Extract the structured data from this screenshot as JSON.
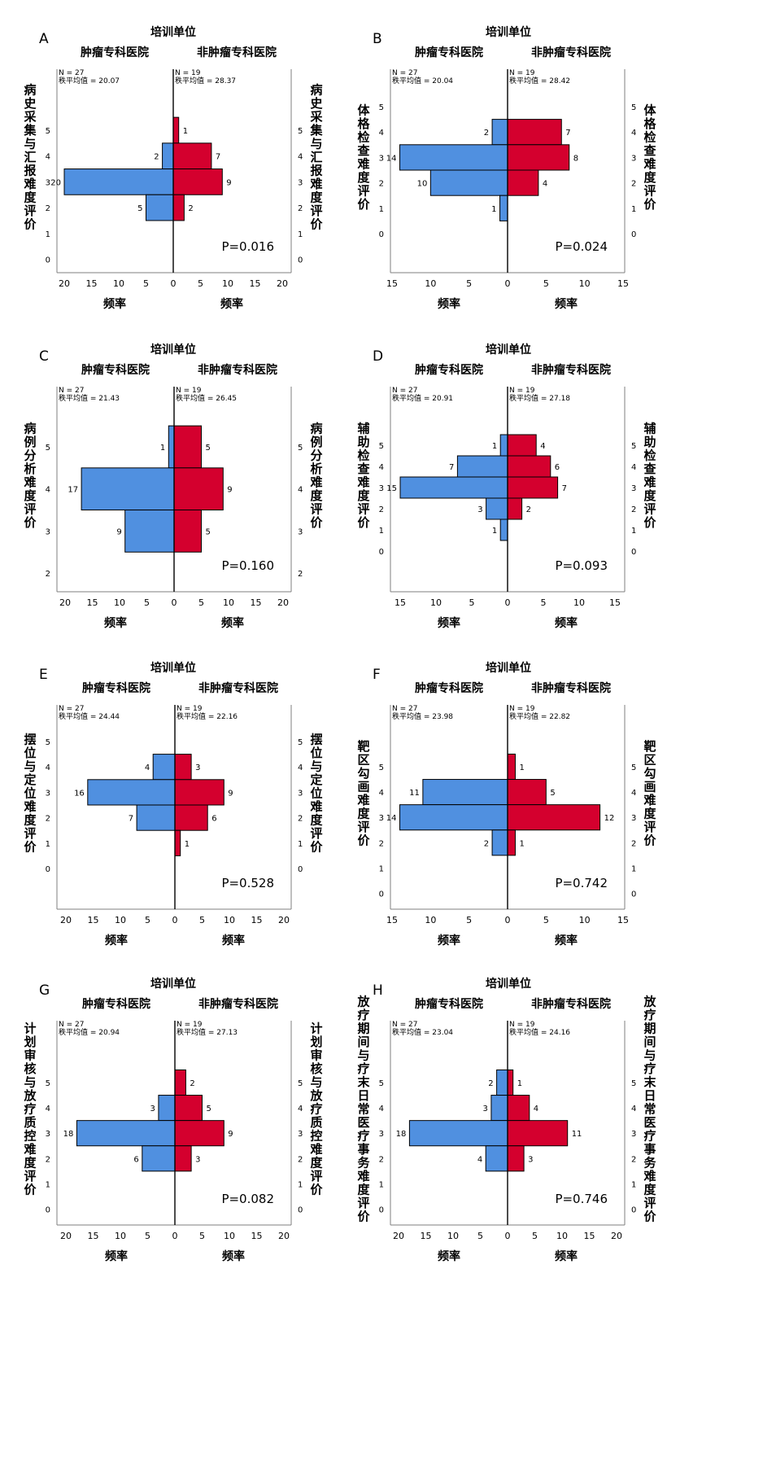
{
  "chart_data": [
    {
      "type": "bar",
      "panel": "A",
      "title": "培训单位",
      "groups": [
        "肿瘤专科医院",
        "非肿瘤专科医院"
      ],
      "ylabel": "病史采集与汇报难度评价",
      "xlabel": "频率",
      "y_ticks": [
        5,
        4,
        3,
        2,
        1,
        0
      ],
      "xlim": [
        0,
        20
      ],
      "x_ticks": [
        20,
        15,
        10,
        5,
        0,
        5,
        10,
        15,
        20
      ],
      "left_stats": [
        "N = 27",
        "秩平均值 = 20.07"
      ],
      "right_stats": [
        "N = 19",
        "秩平均值 = 28.37"
      ],
      "categories": [
        5,
        4,
        3,
        2,
        1,
        0
      ],
      "series": [
        {
          "name": "肿瘤专科医院",
          "values": [
            0,
            2,
            20,
            5,
            0,
            0
          ]
        },
        {
          "name": "非肿瘤专科医院",
          "values": [
            1,
            7,
            9,
            2,
            0,
            0
          ]
        }
      ],
      "p_value": "P=0.016"
    },
    {
      "type": "bar",
      "panel": "B",
      "title": "培训单位",
      "groups": [
        "肿瘤专科医院",
        "非肿瘤专科医院"
      ],
      "ylabel": "体格检查难度评价",
      "xlabel": "频率",
      "y_ticks": [
        5,
        4,
        3,
        2,
        1,
        0
      ],
      "xlim": [
        0,
        15
      ],
      "x_ticks": [
        15,
        10,
        5,
        0,
        5,
        10,
        15
      ],
      "left_stats": [
        "N = 27",
        "秩平均值 = 20.04"
      ],
      "right_stats": [
        "N = 19",
        "秩平均值 = 28.42"
      ],
      "categories": [
        5,
        4,
        3,
        2,
        1,
        0
      ],
      "series": [
        {
          "name": "肿瘤专科医院",
          "values": [
            0,
            2,
            14,
            10,
            1,
            0
          ]
        },
        {
          "name": "非肿瘤专科医院",
          "values": [
            0,
            7,
            8,
            4,
            0,
            0
          ]
        }
      ],
      "p_value": "P=0.024"
    },
    {
      "type": "bar",
      "panel": "C",
      "title": "培训单位",
      "groups": [
        "肿瘤专科医院",
        "非肿瘤专科医院"
      ],
      "ylabel": "病例分析难度评价",
      "xlabel": "频率",
      "y_ticks": [
        5,
        4,
        3,
        2
      ],
      "xlim": [
        0,
        20
      ],
      "x_ticks": [
        20,
        15,
        10,
        5,
        0,
        5,
        10,
        15,
        20
      ],
      "left_stats": [
        "N = 27",
        "秩平均值 = 21.43"
      ],
      "right_stats": [
        "N = 19",
        "秩平均值 = 26.45"
      ],
      "categories": [
        5,
        4,
        3,
        2
      ],
      "series": [
        {
          "name": "肿瘤专科医院",
          "values": [
            1,
            17,
            9,
            0
          ]
        },
        {
          "name": "非肿瘤专科医院",
          "values": [
            5,
            9,
            5,
            0
          ]
        }
      ],
      "p_value": "P=0.160"
    },
    {
      "type": "bar",
      "panel": "D",
      "title": "培训单位",
      "groups": [
        "肿瘤专科医院",
        "非肿瘤专科医院"
      ],
      "ylabel": "辅助检查难度评价",
      "xlabel": "频率",
      "y_ticks": [
        5,
        4,
        3,
        2,
        1,
        0
      ],
      "xlim": [
        0,
        15
      ],
      "x_ticks": [
        15,
        10,
        5,
        0,
        5,
        10,
        15
      ],
      "left_stats": [
        "N = 27",
        "秩平均值 = 20.91"
      ],
      "right_stats": [
        "N = 19",
        "秩平均值 = 27.18"
      ],
      "categories": [
        5,
        4,
        3,
        2,
        1,
        0
      ],
      "series": [
        {
          "name": "肿瘤专科医院",
          "values": [
            1,
            7,
            15,
            3,
            1,
            0
          ]
        },
        {
          "name": "非肿瘤专科医院",
          "values": [
            4,
            6,
            7,
            2,
            0,
            0
          ]
        }
      ],
      "p_value": "P=0.093"
    },
    {
      "type": "bar",
      "panel": "E",
      "title": "培训单位",
      "groups": [
        "肿瘤专科医院",
        "非肿瘤专科医院"
      ],
      "ylabel": "摆位与定位难度评价",
      "xlabel": "频率",
      "y_ticks": [
        5,
        4,
        3,
        2,
        1,
        0
      ],
      "xlim": [
        0,
        20
      ],
      "x_ticks": [
        20,
        15,
        10,
        5,
        0,
        5,
        10,
        15,
        20
      ],
      "left_stats": [
        "N = 27",
        "秩平均值 = 24.44"
      ],
      "right_stats": [
        "N = 19",
        "秩平均值 = 22.16"
      ],
      "categories": [
        5,
        4,
        3,
        2,
        1,
        0
      ],
      "series": [
        {
          "name": "肿瘤专科医院",
          "values": [
            0,
            4,
            16,
            7,
            0,
            0
          ]
        },
        {
          "name": "非肿瘤专科医院",
          "values": [
            0,
            3,
            9,
            6,
            1,
            0
          ]
        }
      ],
      "p_value": "P=0.528"
    },
    {
      "type": "bar",
      "panel": "F",
      "title": "培训单位",
      "groups": [
        "肿瘤专科医院",
        "非肿瘤专科医院"
      ],
      "ylabel": "靶区勾画难度评价",
      "xlabel": "频率",
      "y_ticks": [
        5,
        4,
        3,
        2,
        1,
        0
      ],
      "xlim": [
        0,
        15
      ],
      "x_ticks": [
        15,
        10,
        5,
        0,
        5,
        10,
        15
      ],
      "left_stats": [
        "N = 27",
        "秩平均值 = 23.98"
      ],
      "right_stats": [
        "N = 19",
        "秩平均值 = 22.82"
      ],
      "categories": [
        5,
        4,
        3,
        2,
        1,
        0
      ],
      "series": [
        {
          "name": "肿瘤专科医院",
          "values": [
            0,
            11,
            14,
            2,
            0,
            0
          ]
        },
        {
          "name": "非肿瘤专科医院",
          "values": [
            1,
            5,
            12,
            1,
            0,
            0
          ]
        }
      ],
      "p_value": "P=0.742"
    },
    {
      "type": "bar",
      "panel": "G",
      "title": "培训单位",
      "groups": [
        "肿瘤专科医院",
        "非肿瘤专科医院"
      ],
      "ylabel": "计划审核与放疗质控难度评价",
      "xlabel": "频率",
      "y_ticks": [
        5,
        4,
        3,
        2,
        1,
        0
      ],
      "xlim": [
        0,
        20
      ],
      "x_ticks": [
        20,
        15,
        10,
        5,
        0,
        5,
        10,
        15,
        20
      ],
      "left_stats": [
        "N = 27",
        "秩平均值 = 20.94"
      ],
      "right_stats": [
        "N = 19",
        "秩平均值 = 27.13"
      ],
      "categories": [
        5,
        4,
        3,
        2,
        1,
        0
      ],
      "series": [
        {
          "name": "肿瘤专科医院",
          "values": [
            0,
            3,
            18,
            6,
            0,
            0
          ]
        },
        {
          "name": "非肿瘤专科医院",
          "values": [
            2,
            5,
            9,
            3,
            0,
            0
          ]
        }
      ],
      "p_value": "P=0.082"
    },
    {
      "type": "bar",
      "panel": "H",
      "title": "培训单位",
      "groups": [
        "肿瘤专科医院",
        "非肿瘤专科医院"
      ],
      "ylabel": "放疗期间与疗末日常医疗事务难度评价",
      "xlabel": "频率",
      "y_ticks": [
        5,
        4,
        3,
        2,
        1,
        0
      ],
      "xlim": [
        0,
        20
      ],
      "x_ticks": [
        20,
        15,
        10,
        5,
        0,
        5,
        10,
        15,
        20
      ],
      "left_stats": [
        "N = 27",
        "秩平均值 = 23.04"
      ],
      "right_stats": [
        "N = 19",
        "秩平均值 = 24.16"
      ],
      "categories": [
        5,
        4,
        3,
        2,
        1,
        0
      ],
      "series": [
        {
          "name": "肿瘤专科医院",
          "values": [
            2,
            3,
            18,
            4,
            0,
            0
          ]
        },
        {
          "name": "非肿瘤专科医院",
          "values": [
            1,
            4,
            11,
            3,
            0,
            0
          ]
        }
      ],
      "p_value": "P=0.746"
    }
  ],
  "colors": {
    "left_bar": "#5090e0",
    "right_bar": "#d4002e",
    "axis": "#000000",
    "frame": "#7f7f7f"
  }
}
